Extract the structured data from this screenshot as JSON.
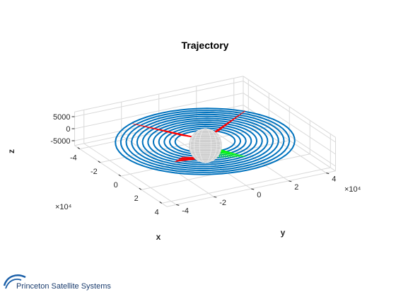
{
  "chart_data": {
    "type": "line",
    "projection": "3d",
    "title": "Trajectory",
    "xlabel": "x",
    "ylabel": "y",
    "zlabel": "z",
    "x_ticks": [
      "-4",
      "-2",
      "0",
      "2",
      "4"
    ],
    "y_ticks": [
      "-4",
      "-2",
      "0",
      "2",
      "4"
    ],
    "z_ticks": [
      "5000",
      "0",
      "-5000"
    ],
    "x_exponent": "×10⁴",
    "y_exponent": "×10⁴",
    "xlim": [
      -4.5,
      4.5
    ],
    "ylim": [
      -4.5,
      4.5
    ],
    "zlim": [
      -7000,
      7000
    ],
    "grid": true,
    "series": [
      {
        "name": "orbit spiral",
        "color": "#0072BD",
        "radius_start": 1.4,
        "radius_end": 4.2,
        "turns": 12,
        "unit": "x10^4"
      },
      {
        "name": "thrust arcs (red)",
        "color": "#FF0000"
      },
      {
        "name": "thrust arcs (green)",
        "color": "#00FF00"
      },
      {
        "name": "central body",
        "color": "#d0d0d0"
      }
    ]
  },
  "branding": {
    "company": "Princeton Satellite Systems",
    "logo_color": "#1a5fa8"
  }
}
